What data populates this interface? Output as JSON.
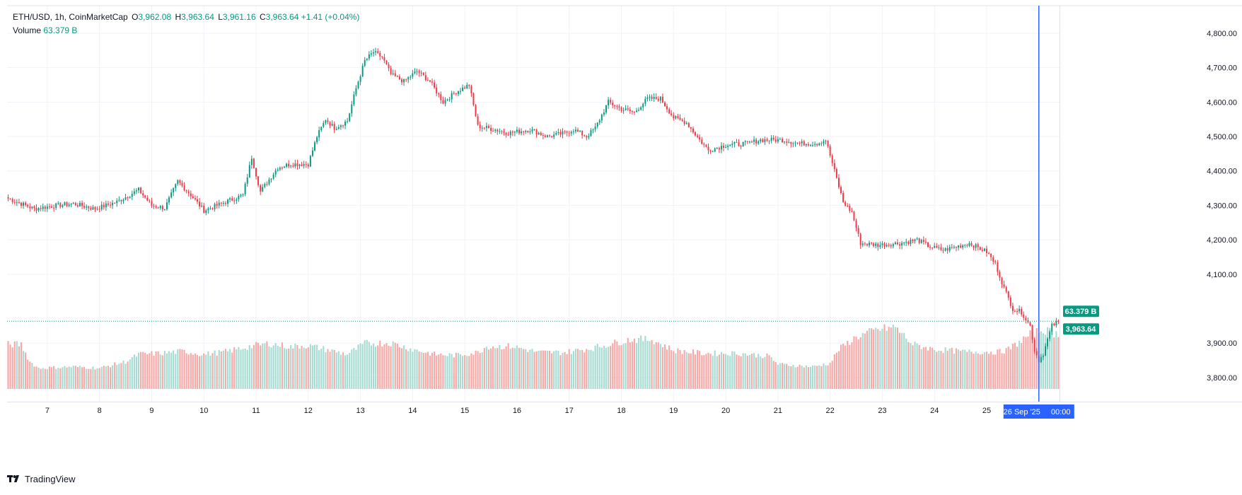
{
  "legend": {
    "symbol": "ETH/USD, 1h, CoinMarketCap",
    "o_label": "O",
    "o_value": "3,962.08",
    "h_label": "H",
    "h_value": "3,963.64",
    "l_label": "L",
    "l_value": "3,961.16",
    "c_label": "C",
    "c_value": "3,963.64",
    "change": "+1.41 (+0.04%)",
    "volume_label": "Volume",
    "volume_value": "63.379 B"
  },
  "footer": {
    "brand": "TradingView",
    "brand_icon": "tradingview-logo-icon"
  },
  "colors": {
    "up": "#089981",
    "down": "#f23645",
    "up_vol": "#a7dcd3",
    "down_vol": "#f7a9a7",
    "crosshair": "#2962ff",
    "grid": "#f0f3fa"
  },
  "chart_data": {
    "type": "candlestick",
    "title": "ETH/USD, 1h, CoinMarketCap",
    "ylim": [
      3730,
      4880
    ],
    "y_ticks": [
      "4,800.00",
      "4,700.00",
      "4,600.00",
      "4,500.00",
      "4,400.00",
      "4,300.00",
      "4,200.00",
      "4,100.00",
      "3,900.00",
      "3,800.00"
    ],
    "y_tick_values": [
      4800,
      4700,
      4600,
      4500,
      4400,
      4300,
      4200,
      4100,
      3900,
      3800
    ],
    "x_ticks": [
      "7",
      "8",
      "9",
      "10",
      "11",
      "12",
      "13",
      "14",
      "15",
      "16",
      "17",
      "18",
      "19",
      "20",
      "21",
      "22",
      "23",
      "24",
      "25"
    ],
    "x_tick_hours": [
      18,
      42,
      66,
      90,
      114,
      138,
      162,
      186,
      210,
      234,
      258,
      282,
      306,
      330,
      354,
      378,
      402,
      426,
      450
    ],
    "last_price": 3963.64,
    "last_price_label": "3,963.64",
    "volume_label": "63.379 B",
    "crosshair_date": "26 Sep '25",
    "crosshair_time": "00:00",
    "crosshair_hour": 474,
    "anchors": [
      [
        0,
        4320
      ],
      [
        12,
        4290
      ],
      [
        20,
        4298
      ],
      [
        30,
        4305
      ],
      [
        40,
        4290
      ],
      [
        50,
        4310
      ],
      [
        60,
        4345
      ],
      [
        66,
        4300
      ],
      [
        72,
        4292
      ],
      [
        78,
        4370
      ],
      [
        84,
        4330
      ],
      [
        90,
        4285
      ],
      [
        100,
        4310
      ],
      [
        108,
        4330
      ],
      [
        112,
        4440
      ],
      [
        116,
        4340
      ],
      [
        124,
        4410
      ],
      [
        130,
        4420
      ],
      [
        138,
        4420
      ],
      [
        142,
        4500
      ],
      [
        146,
        4550
      ],
      [
        150,
        4525
      ],
      [
        156,
        4545
      ],
      [
        160,
        4640
      ],
      [
        164,
        4720
      ],
      [
        168,
        4745
      ],
      [
        172,
        4730
      ],
      [
        176,
        4680
      ],
      [
        182,
        4660
      ],
      [
        188,
        4690
      ],
      [
        194,
        4660
      ],
      [
        200,
        4600
      ],
      [
        206,
        4630
      ],
      [
        212,
        4650
      ],
      [
        216,
        4530
      ],
      [
        224,
        4520
      ],
      [
        230,
        4510
      ],
      [
        240,
        4520
      ],
      [
        248,
        4500
      ],
      [
        256,
        4510
      ],
      [
        260,
        4520
      ],
      [
        266,
        4500
      ],
      [
        270,
        4525
      ],
      [
        276,
        4600
      ],
      [
        282,
        4580
      ],
      [
        288,
        4570
      ],
      [
        294,
        4610
      ],
      [
        300,
        4610
      ],
      [
        306,
        4555
      ],
      [
        312,
        4540
      ],
      [
        318,
        4490
      ],
      [
        322,
        4460
      ],
      [
        330,
        4475
      ],
      [
        340,
        4480
      ],
      [
        346,
        4490
      ],
      [
        356,
        4490
      ],
      [
        364,
        4480
      ],
      [
        372,
        4480
      ],
      [
        376,
        4490
      ],
      [
        380,
        4400
      ],
      [
        384,
        4310
      ],
      [
        388,
        4280
      ],
      [
        392,
        4190
      ],
      [
        400,
        4185
      ],
      [
        410,
        4190
      ],
      [
        418,
        4200
      ],
      [
        424,
        4180
      ],
      [
        430,
        4170
      ],
      [
        436,
        4180
      ],
      [
        442,
        4190
      ],
      [
        450,
        4165
      ],
      [
        454,
        4130
      ],
      [
        458,
        4060
      ],
      [
        462,
        4000
      ],
      [
        466,
        3990
      ],
      [
        470,
        3950
      ],
      [
        472,
        3880
      ],
      [
        474,
        3850
      ],
      [
        476,
        3870
      ],
      [
        480,
        3950
      ],
      [
        483,
        3963.64
      ]
    ],
    "volume_anchors": [
      [
        0,
        0.9
      ],
      [
        6,
        0.9
      ],
      [
        10,
        0.55
      ],
      [
        14,
        0.42
      ],
      [
        30,
        0.45
      ],
      [
        42,
        0.42
      ],
      [
        54,
        0.55
      ],
      [
        60,
        0.7
      ],
      [
        70,
        0.72
      ],
      [
        80,
        0.76
      ],
      [
        90,
        0.7
      ],
      [
        100,
        0.75
      ],
      [
        110,
        0.85
      ],
      [
        120,
        0.92
      ],
      [
        130,
        0.85
      ],
      [
        136,
        0.88
      ],
      [
        140,
        0.86
      ],
      [
        156,
        0.7
      ],
      [
        164,
        0.92
      ],
      [
        176,
        0.93
      ],
      [
        186,
        0.8
      ],
      [
        196,
        0.7
      ],
      [
        206,
        0.68
      ],
      [
        216,
        0.74
      ],
      [
        220,
        0.86
      ],
      [
        232,
        0.86
      ],
      [
        244,
        0.74
      ],
      [
        256,
        0.74
      ],
      [
        268,
        0.82
      ],
      [
        276,
        0.9
      ],
      [
        286,
        1.0
      ],
      [
        296,
        1.0
      ],
      [
        306,
        0.78
      ],
      [
        320,
        0.72
      ],
      [
        336,
        0.72
      ],
      [
        350,
        0.66
      ],
      [
        354,
        0.5
      ],
      [
        370,
        0.45
      ],
      [
        378,
        0.52
      ],
      [
        382,
        0.8
      ],
      [
        390,
        1.05
      ],
      [
        400,
        1.2
      ],
      [
        408,
        1.25
      ],
      [
        416,
        0.9
      ],
      [
        426,
        0.8
      ],
      [
        440,
        0.75
      ],
      [
        456,
        0.75
      ],
      [
        460,
        0.8
      ],
      [
        470,
        1.1
      ],
      [
        476,
        1.2
      ],
      [
        483,
        1.1
      ]
    ]
  }
}
